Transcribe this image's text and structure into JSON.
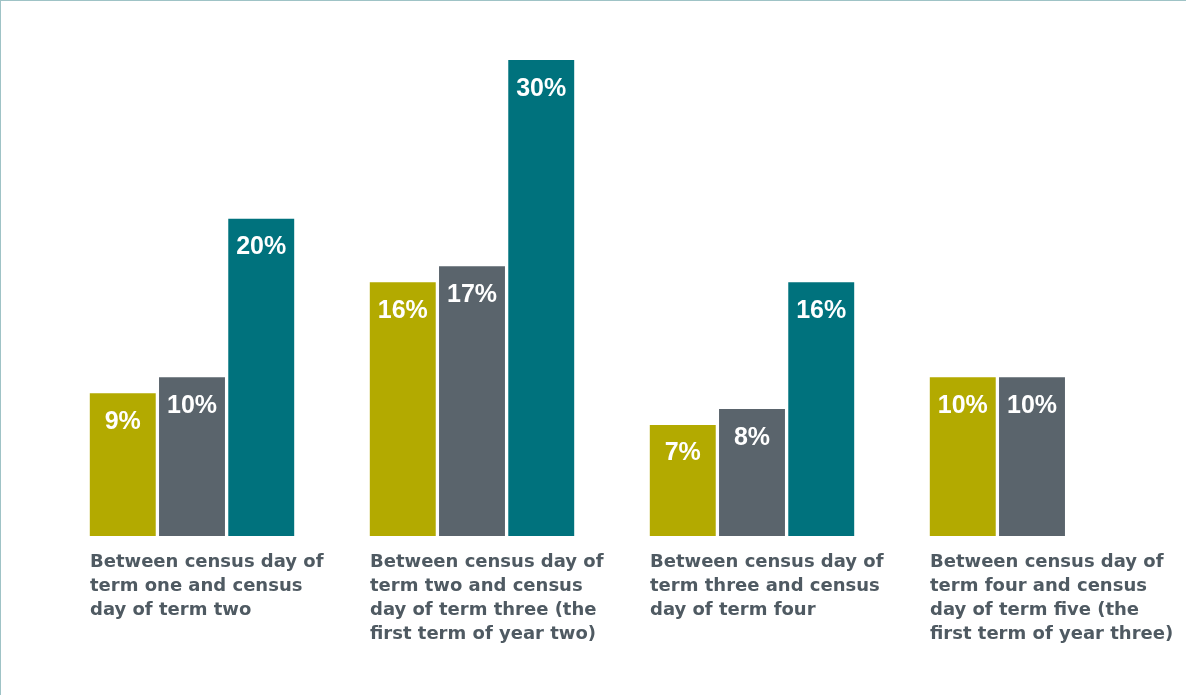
{
  "chart_data": {
    "type": "bar",
    "categories": [
      "Between census day of term one and census day of term two",
      "Between census day of term two and census day of term three (the first term of year two)",
      "Between census day of term three and census day of term four",
      "Between census day of term four and census day of term five (the first term of year three)"
    ],
    "series": [
      {
        "color": "#b3aa00",
        "values": [
          9,
          16,
          7,
          10
        ],
        "value_labels": [
          "9%",
          "16%",
          "7%",
          "10%"
        ]
      },
      {
        "color": "#5a646c",
        "values": [
          10,
          17,
          8,
          10
        ],
        "value_labels": [
          "10%",
          "17%",
          "8%",
          "10%"
        ]
      },
      {
        "color": "#00727d",
        "values": [
          20,
          30,
          16,
          null
        ],
        "value_labels": [
          "20%",
          "30%",
          "16%",
          null
        ]
      }
    ],
    "stacked": false
  }
}
